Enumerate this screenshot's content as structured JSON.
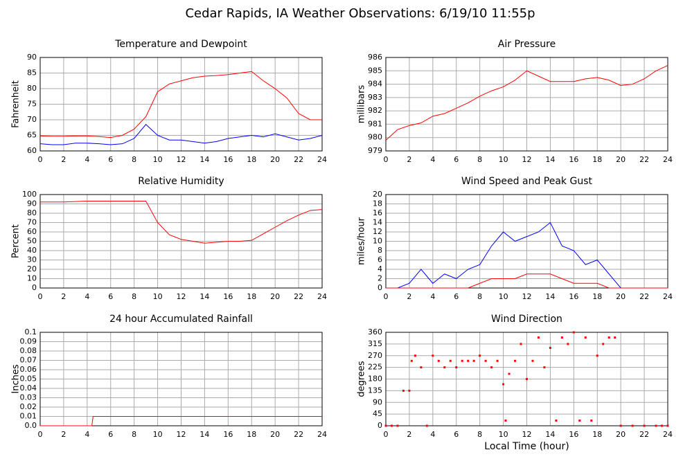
{
  "title": "Cedar Rapids, IA Weather Observations: 6/19/10 11:55p",
  "chart_data": [
    {
      "type": "line",
      "title": "Temperature and Dewpoint",
      "ylabel": "Fahrenheit",
      "x": [
        0,
        1,
        2,
        3,
        4,
        5,
        6,
        7,
        8,
        9,
        10,
        11,
        12,
        13,
        14,
        15,
        16,
        17,
        18,
        19,
        20,
        21,
        22,
        23,
        24
      ],
      "series": [
        {
          "color": "#ff0000",
          "values": [
            64.8,
            64.7,
            64.7,
            64.8,
            64.8,
            64.6,
            64.3,
            65,
            67,
            71,
            79,
            81.5,
            82.5,
            83.5,
            84,
            84.2,
            84.5,
            85,
            85.5,
            82.5,
            80,
            77,
            72,
            70,
            70
          ]
        },
        {
          "color": "#0000ff",
          "values": [
            62.3,
            62,
            62,
            62.5,
            62.5,
            62.3,
            62,
            62.3,
            64,
            68.5,
            65,
            63.5,
            63.5,
            63,
            62.5,
            63,
            64,
            64.5,
            65,
            64.5,
            65.5,
            64.5,
            63.5,
            64,
            65
          ]
        }
      ],
      "xlim": [
        0,
        24
      ],
      "ylim": [
        60,
        90
      ],
      "xticks": [
        0,
        2,
        4,
        6,
        8,
        10,
        12,
        14,
        16,
        18,
        20,
        22,
        24
      ],
      "yticks": [
        60,
        65,
        70,
        75,
        80,
        85,
        90
      ],
      "grid": true
    },
    {
      "type": "line",
      "title": "Air Pressure",
      "ylabel": "millibars",
      "x": [
        0,
        1,
        2,
        3,
        4,
        5,
        6,
        7,
        8,
        9,
        10,
        11,
        12,
        13,
        14,
        15,
        16,
        17,
        18,
        19,
        20,
        21,
        22,
        23,
        24
      ],
      "series": [
        {
          "color": "#ff0000",
          "values": [
            979.8,
            980.6,
            980.9,
            981.1,
            981.6,
            981.8,
            982.2,
            982.6,
            983.1,
            983.5,
            983.8,
            984.3,
            985,
            984.6,
            984.2,
            984.2,
            984.2,
            984.4,
            984.5,
            984.3,
            983.9,
            984.0,
            984.4,
            985,
            985.4
          ]
        }
      ],
      "xlim": [
        0,
        24
      ],
      "ylim": [
        979,
        986
      ],
      "xticks": [
        0,
        2,
        4,
        6,
        8,
        10,
        12,
        14,
        16,
        18,
        20,
        22,
        24
      ],
      "yticks": [
        979,
        980,
        981,
        982,
        983,
        984,
        985,
        986
      ],
      "grid": true
    },
    {
      "type": "line",
      "title": "Relative Humidity",
      "ylabel": "Percent",
      "x": [
        0,
        1,
        2,
        3,
        4,
        5,
        6,
        7,
        8,
        9,
        10,
        11,
        12,
        13,
        14,
        15,
        16,
        17,
        18,
        19,
        20,
        21,
        22,
        23,
        24
      ],
      "series": [
        {
          "color": "#ff0000",
          "values": [
            92,
            92,
            92,
            92.5,
            93,
            93,
            93,
            93,
            93,
            93,
            70,
            57,
            52,
            50,
            48,
            49,
            50,
            50,
            51,
            58,
            65,
            72,
            78,
            83,
            84
          ]
        }
      ],
      "xlim": [
        0,
        24
      ],
      "ylim": [
        0,
        100
      ],
      "xticks": [
        0,
        2,
        4,
        6,
        8,
        10,
        12,
        14,
        16,
        18,
        20,
        22,
        24
      ],
      "yticks": [
        0,
        10,
        20,
        30,
        40,
        50,
        60,
        70,
        80,
        90,
        100
      ],
      "grid": true
    },
    {
      "type": "line",
      "title": "Wind Speed and Peak Gust",
      "ylabel": "miles/hour",
      "x": [
        0,
        1,
        2,
        3,
        4,
        5,
        6,
        7,
        8,
        9,
        10,
        11,
        12,
        13,
        14,
        15,
        16,
        17,
        18,
        19,
        20,
        21,
        22,
        23,
        24
      ],
      "series": [
        {
          "color": "#0000ff",
          "values": [
            0,
            0,
            1,
            4,
            1,
            3,
            2,
            4,
            5,
            9,
            12,
            10,
            11,
            12,
            14,
            9,
            8,
            5,
            6,
            3,
            0,
            0,
            0,
            0,
            0
          ]
        },
        {
          "color": "#ff0000",
          "values": [
            0,
            0,
            0,
            0,
            0,
            0,
            0,
            0,
            1,
            2,
            2,
            2,
            3,
            3,
            3,
            2,
            1,
            1,
            1,
            0,
            0,
            0,
            0,
            0,
            0
          ]
        }
      ],
      "xlim": [
        0,
        24
      ],
      "ylim": [
        0,
        20
      ],
      "xticks": [
        0,
        2,
        4,
        6,
        8,
        10,
        12,
        14,
        16,
        18,
        20,
        22,
        24
      ],
      "yticks": [
        0,
        2,
        4,
        6,
        8,
        10,
        12,
        14,
        16,
        18,
        20
      ],
      "grid": true
    },
    {
      "type": "line",
      "title": "24 hour Accumulated Rainfall",
      "ylabel": "Inches",
      "x": [
        0,
        4.4,
        4.5,
        24
      ],
      "series": [
        {
          "color": "#ff0000",
          "values": [
            0,
            0,
            0.01,
            0.01
          ]
        }
      ],
      "xlim": [
        0,
        24
      ],
      "ylim": [
        0,
        0.1
      ],
      "xticks": [
        0,
        2,
        4,
        6,
        8,
        10,
        12,
        14,
        16,
        18,
        20,
        22,
        24
      ],
      "yticks": [
        {
          "value": 0,
          "label": "0.0"
        },
        0.01,
        0.02,
        0.03,
        0.04,
        0.05,
        0.06,
        0.07,
        0.08,
        0.09,
        0.1
      ],
      "grid": true
    },
    {
      "type": "scatter",
      "title": "Wind Direction",
      "ylabel": "degrees",
      "xlabel": "Local Time (hour)",
      "x": [
        0,
        0.5,
        1,
        1.5,
        2,
        2.2,
        2.5,
        3,
        3.5,
        4,
        4.5,
        5,
        5.5,
        6,
        6.5,
        7,
        7.5,
        8,
        8.5,
        9,
        9.5,
        10,
        10.2,
        10.5,
        11,
        11.5,
        12,
        12.5,
        13,
        13.5,
        14,
        14.5,
        15,
        15.5,
        16,
        16.5,
        17,
        17.5,
        18,
        18.5,
        19,
        19.5,
        20,
        21,
        22,
        23,
        23.5,
        24
      ],
      "series": [
        {
          "color": "#ff0000",
          "values": [
            0,
            0,
            0,
            135,
            135,
            250,
            270,
            225,
            0,
            270,
            250,
            225,
            250,
            225,
            250,
            250,
            250,
            270,
            250,
            225,
            250,
            160,
            20,
            200,
            250,
            315,
            180,
            250,
            340,
            225,
            300,
            20,
            340,
            315,
            360,
            20,
            340,
            20,
            270,
            315,
            340,
            340,
            0,
            0,
            0,
            0,
            0,
            0
          ]
        }
      ],
      "xlim": [
        0,
        24
      ],
      "ylim": [
        0,
        360
      ],
      "xticks": [
        0,
        2,
        4,
        6,
        8,
        10,
        12,
        14,
        16,
        18,
        20,
        22,
        24
      ],
      "yticks": [
        0,
        45,
        90,
        135,
        180,
        225,
        270,
        315,
        360
      ],
      "grid": true
    }
  ]
}
